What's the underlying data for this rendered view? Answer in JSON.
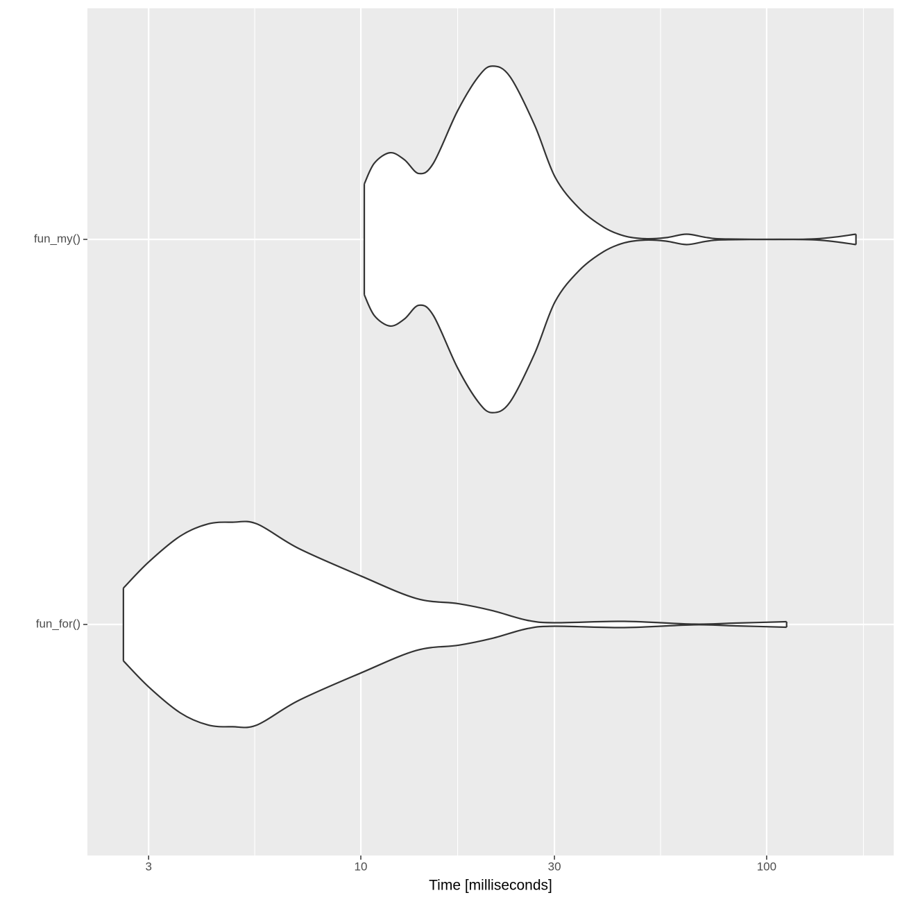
{
  "chart_data": {
    "type": "violin",
    "xlabel": "Time [milliseconds]",
    "xlog": true,
    "xlim": [
      2.12,
      205.6
    ],
    "xticks": [
      3,
      10,
      30,
      100
    ],
    "minor_xticks": [
      5.477,
      17.32,
      54.77,
      173.2
    ],
    "grid": true,
    "categories": [
      "fun_for()",
      "fun_my()"
    ],
    "series": [
      {
        "name": "fun_for()",
        "color": "#333333",
        "x": [
          2.6,
          3.0,
          3.59,
          4.2,
          4.83,
          5.55,
          7.01,
          10,
          13.7,
          17.4,
          21.1,
          25.7,
          30.1,
          44.6,
          66.1,
          83.7,
          112
        ],
        "values": [
          0.21,
          0.36,
          0.51,
          0.58,
          0.59,
          0.58,
          0.44,
          0.28,
          0.15,
          0.12,
          0.08,
          0.024,
          0.01,
          0.018,
          0.002,
          0.008,
          0.016
        ]
      },
      {
        "name": "fun_my()",
        "color": "#333333",
        "x": [
          10.2,
          10.8,
          11.8,
          12.8,
          13.9,
          15.1,
          17.3,
          19.5,
          21.1,
          23.3,
          26.8,
          30.1,
          34.5,
          39.7,
          44.6,
          50.2,
          56.5,
          63.5,
          71.5,
          80.5,
          129,
          166
        ],
        "values": [
          0.32,
          0.44,
          0.5,
          0.46,
          0.38,
          0.44,
          0.74,
          0.94,
          1.0,
          0.94,
          0.66,
          0.36,
          0.18,
          0.07,
          0.02,
          0.004,
          0.01,
          0.03,
          0.01,
          0.002,
          0.002,
          0.03
        ]
      }
    ]
  }
}
